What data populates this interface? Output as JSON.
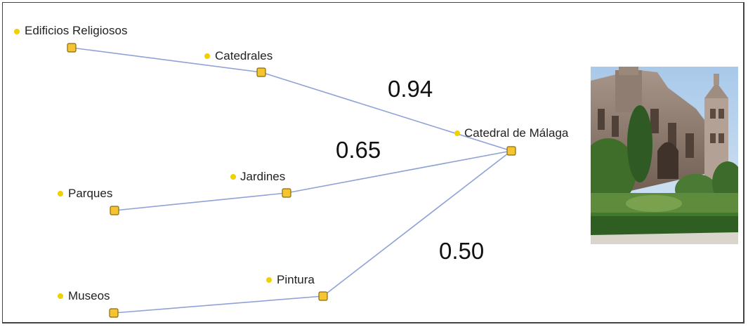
{
  "nodes": {
    "edificios": "Edificios Religiosos",
    "catedrales": "Catedrales",
    "catedral_malaga": "Catedral de Málaga",
    "parques": "Parques",
    "jardines": "Jardines",
    "museos": "Museos",
    "pintura": "Pintura"
  },
  "weights": {
    "catedrales_link": "0.94",
    "jardines_link": "0.65",
    "pintura_link": "0.50"
  },
  "colors": {
    "edge": "#8fa2d6",
    "node_fill": "#f4c531",
    "node_stroke": "#8a6a10",
    "dot": "#f0d000"
  }
}
